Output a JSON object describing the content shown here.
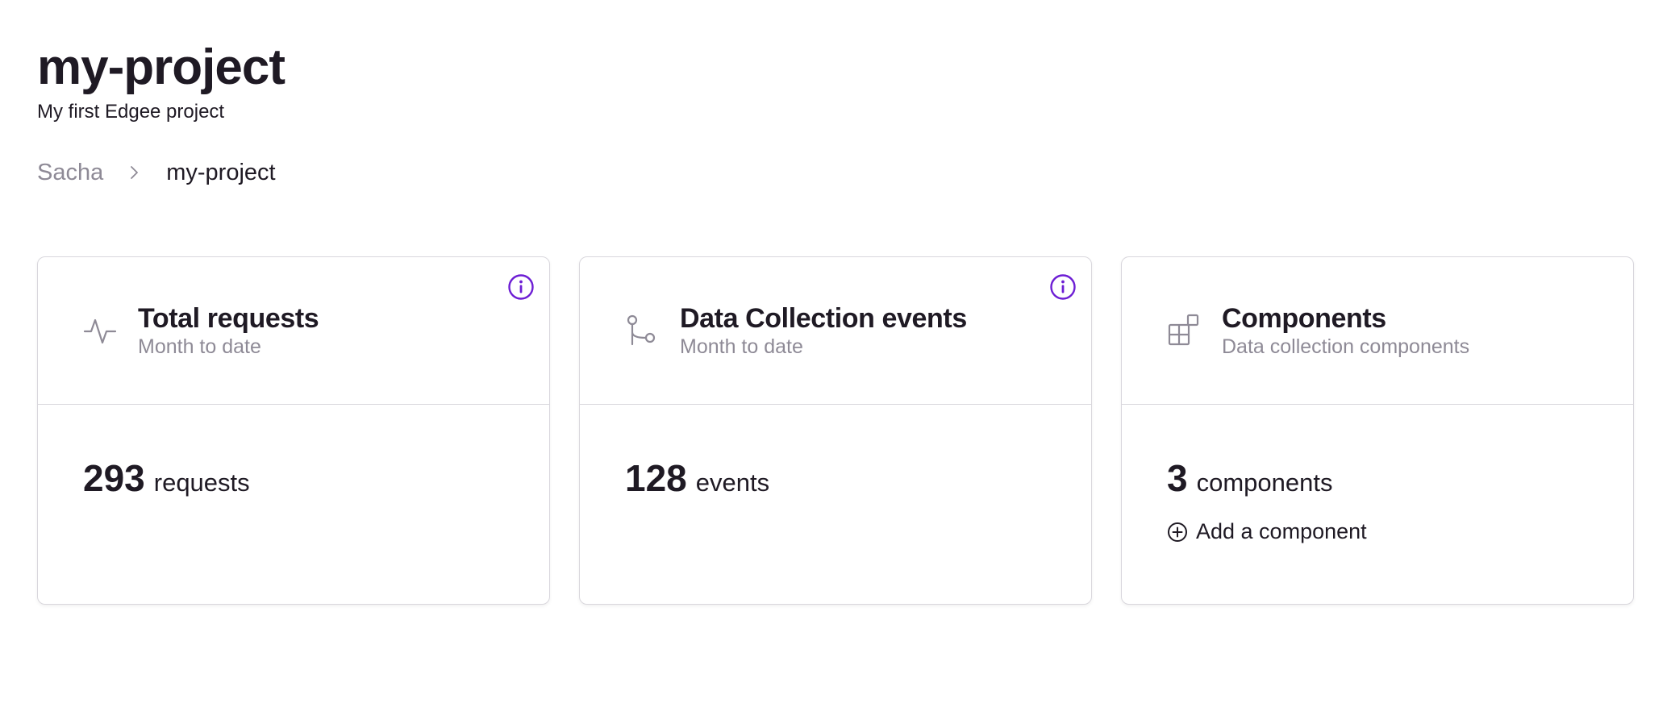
{
  "project": {
    "title": "my-project",
    "subtitle": "My first Edgee project"
  },
  "breadcrumb": {
    "parent": "Sacha",
    "current": "my-project"
  },
  "colors": {
    "accent": "#6d1ed4",
    "text": "#1f1a24",
    "muted": "#8e8a96",
    "border": "#d9d7dd"
  },
  "cards": [
    {
      "icon": "activity-icon",
      "title": "Total requests",
      "subtitle": "Month to date",
      "value": "293",
      "unit": "requests",
      "has_info": true
    },
    {
      "icon": "git-branch-icon",
      "title": "Data Collection events",
      "subtitle": "Month to date",
      "value": "128",
      "unit": "events",
      "has_info": true
    },
    {
      "icon": "components-icon",
      "title": "Components",
      "subtitle": "Data collection components",
      "value": "3",
      "unit": "components",
      "action_label": "Add a component",
      "has_info": false
    }
  ]
}
